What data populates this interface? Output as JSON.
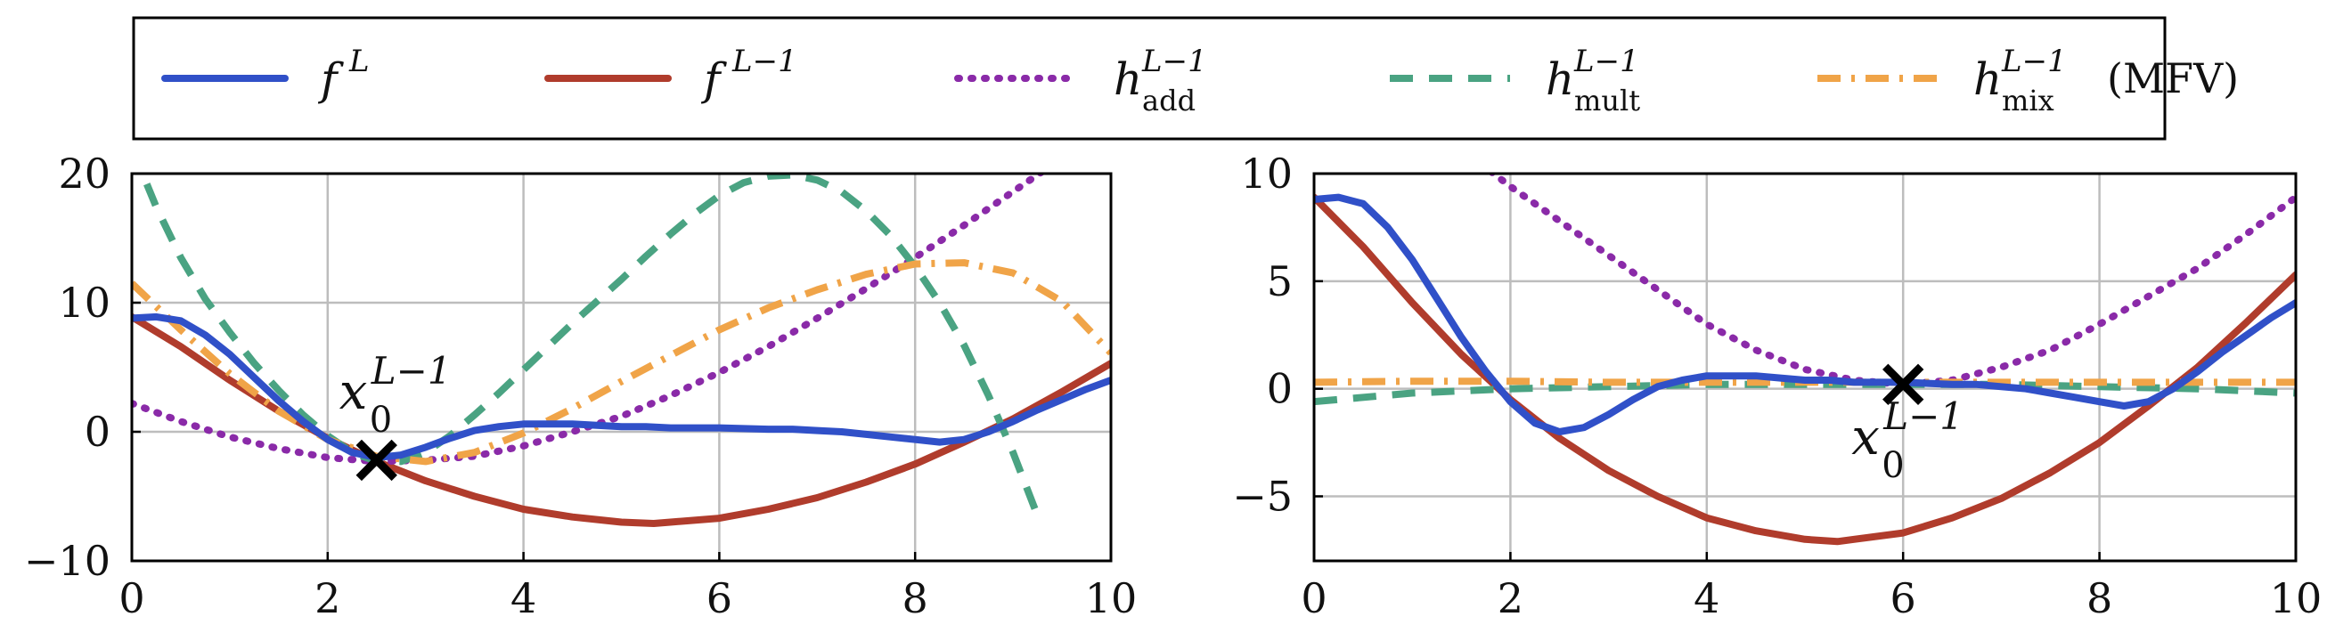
{
  "legend": {
    "placement": "top",
    "entries": [
      {
        "key": "fL",
        "symbol": "f",
        "sup": "L",
        "sub": "",
        "suffix": ""
      },
      {
        "key": "fL1",
        "symbol": "f",
        "sup": "L−1",
        "sub": "",
        "suffix": ""
      },
      {
        "key": "hadd",
        "symbol": "h",
        "sup": "L−1",
        "sub": "add",
        "suffix": ""
      },
      {
        "key": "hmult",
        "symbol": "h",
        "sup": "L−1",
        "sub": "mult",
        "suffix": ""
      },
      {
        "key": "hmix",
        "symbol": "h",
        "sup": "L−1",
        "sub": "mix",
        "suffix": "(MFV)"
      }
    ]
  },
  "colors": {
    "fL": "#3050c8",
    "fL1": "#b03c2c",
    "hadd": "#8a2aa8",
    "hmult": "#4aa382",
    "hmix": "#f0a448",
    "grid": "#bdbdbd",
    "marker": "#000000"
  },
  "chart_data": [
    {
      "type": "line",
      "grid": true,
      "xlim": [
        0,
        10
      ],
      "ylim": [
        -10,
        20
      ],
      "xticks": [
        0,
        2,
        4,
        6,
        8,
        10
      ],
      "xtick_labels": [
        "0",
        "2",
        "4",
        "6",
        "8",
        "10"
      ],
      "yticks": [
        -10,
        0,
        10,
        20
      ],
      "ytick_labels": [
        "−10",
        "0",
        "10",
        "20"
      ],
      "annotation": {
        "symbol": "x",
        "sup": "L−1",
        "sub": "0",
        "marker_x": 2.5,
        "marker_y": -2.2,
        "position": "above-left"
      },
      "series": [
        {
          "key": "fL",
          "style": "solid",
          "x": [
            0,
            0.25,
            0.5,
            0.75,
            1,
            1.25,
            1.5,
            1.75,
            2,
            2.25,
            2.5,
            2.75,
            3,
            3.25,
            3.5,
            3.75,
            4,
            4.25,
            4.5,
            4.75,
            5,
            5.25,
            5.5,
            5.75,
            6,
            6.25,
            6.5,
            6.75,
            7,
            7.25,
            7.5,
            7.75,
            8,
            8.25,
            8.5,
            8.75,
            9,
            9.25,
            9.5,
            9.75,
            10
          ],
          "y": [
            8.8,
            8.9,
            8.6,
            7.5,
            6,
            4.2,
            2.4,
            0.8,
            -0.6,
            -1.6,
            -2.0,
            -1.8,
            -1.2,
            -0.5,
            0.1,
            0.4,
            0.6,
            0.6,
            0.6,
            0.5,
            0.4,
            0.4,
            0.3,
            0.3,
            0.3,
            0.25,
            0.2,
            0.2,
            0.1,
            0,
            -0.2,
            -0.4,
            -0.6,
            -0.8,
            -0.6,
            0,
            0.8,
            1.7,
            2.5,
            3.3,
            4.0
          ]
        },
        {
          "key": "fL1",
          "style": "solid",
          "x": [
            0,
            0.5,
            1,
            1.5,
            2,
            2.5,
            3,
            3.5,
            4,
            4.5,
            5,
            5.33,
            5.5,
            6,
            6.5,
            7,
            7.5,
            8,
            8.5,
            9,
            9.5,
            10
          ],
          "y": [
            8.9,
            6.6,
            4.0,
            1.6,
            -0.5,
            -2.3,
            -3.8,
            -5.0,
            -6.0,
            -6.6,
            -7.0,
            -7.1,
            -7.0,
            -6.7,
            -6.0,
            -5.1,
            -3.9,
            -2.5,
            -0.8,
            1.0,
            3.1,
            5.3
          ]
        },
        {
          "key": "hadd",
          "style": "dotted",
          "x": [
            0,
            0.5,
            1,
            1.5,
            2,
            2.5,
            3,
            3.5,
            4,
            4.5,
            5,
            5.5,
            6,
            6.5,
            7,
            7.5,
            8,
            8.5,
            9,
            9.5
          ],
          "y": [
            2.2,
            0.8,
            -0.4,
            -1.3,
            -2.0,
            -2.3,
            -2.2,
            -1.9,
            -1.1,
            0,
            1.2,
            2.8,
            4.6,
            6.6,
            8.8,
            11.1,
            13.5,
            16.0,
            18.6,
            21.2
          ]
        },
        {
          "key": "hmult",
          "style": "dashed",
          "x": [
            0,
            0.25,
            0.5,
            0.75,
            1,
            1.25,
            1.5,
            1.75,
            2,
            2.25,
            2.5,
            2.75,
            3,
            3.25,
            3.5,
            3.75,
            4,
            4.25,
            4.5,
            4.75,
            5,
            5.25,
            5.5,
            5.75,
            6,
            6.25,
            6.5,
            6.75,
            7,
            7.25,
            7.5,
            7.75,
            8,
            8.25,
            8.5,
            8.75,
            9,
            9.25
          ],
          "y": [
            22,
            17.4,
            13.5,
            10.3,
            7.7,
            5.3,
            3.2,
            1.3,
            -0.3,
            -1.6,
            -2.3,
            -2.3,
            -1.6,
            -0.3,
            1.3,
            3.0,
            4.8,
            6.6,
            8.4,
            10.1,
            11.8,
            13.6,
            15.3,
            16.9,
            18.3,
            19.3,
            19.8,
            19.9,
            19.5,
            18.6,
            17.1,
            15.2,
            12.8,
            10.0,
            6.7,
            2.8,
            -1.6,
            -6.5
          ]
        },
        {
          "key": "hmix",
          "style": "dashdot",
          "x": [
            0,
            0.5,
            1,
            1.5,
            2,
            2.5,
            3,
            3.5,
            4,
            4.5,
            5,
            5.5,
            6,
            6.5,
            7,
            7.5,
            8,
            8.5,
            9,
            9.5,
            10
          ],
          "y": [
            11.5,
            7.9,
            4.5,
            1.6,
            -0.6,
            -1.9,
            -2.3,
            -1.6,
            -0.1,
            1.8,
            3.9,
            5.9,
            7.9,
            9.6,
            11.0,
            12.2,
            13.0,
            13.1,
            12.3,
            10.1,
            6.1
          ]
        }
      ]
    },
    {
      "type": "line",
      "grid": true,
      "xlim": [
        0,
        10
      ],
      "ylim": [
        -8,
        10
      ],
      "xticks": [
        0,
        2,
        4,
        6,
        8,
        10
      ],
      "xtick_labels": [
        "0",
        "2",
        "4",
        "6",
        "8",
        "10"
      ],
      "yticks": [
        -5,
        0,
        5,
        10
      ],
      "ytick_labels": [
        "−5",
        "0",
        "5",
        "10"
      ],
      "annotation": {
        "symbol": "x",
        "sup": "L−1",
        "sub": "0",
        "marker_x": 6,
        "marker_y": 0.2,
        "position": "below-left"
      },
      "series": [
        {
          "key": "fL",
          "style": "solid",
          "x": [
            0,
            0.25,
            0.5,
            0.75,
            1,
            1.25,
            1.5,
            1.75,
            2,
            2.25,
            2.5,
            2.75,
            3,
            3.25,
            3.5,
            3.75,
            4,
            4.25,
            4.5,
            4.75,
            5,
            5.25,
            5.5,
            5.75,
            6,
            6.25,
            6.5,
            6.75,
            7,
            7.25,
            7.5,
            7.75,
            8,
            8.25,
            8.5,
            8.75,
            9,
            9.25,
            9.5,
            9.75,
            10
          ],
          "y": [
            8.8,
            8.9,
            8.6,
            7.5,
            6,
            4.2,
            2.4,
            0.8,
            -0.6,
            -1.6,
            -2.0,
            -1.8,
            -1.2,
            -0.5,
            0.1,
            0.4,
            0.6,
            0.6,
            0.6,
            0.5,
            0.4,
            0.4,
            0.3,
            0.3,
            0.3,
            0.25,
            0.2,
            0.2,
            0.1,
            0,
            -0.2,
            -0.4,
            -0.6,
            -0.8,
            -0.6,
            0,
            0.8,
            1.7,
            2.5,
            3.3,
            4.0
          ]
        },
        {
          "key": "fL1",
          "style": "solid",
          "x": [
            0,
            0.5,
            1,
            1.5,
            2,
            2.5,
            3,
            3.5,
            4,
            4.5,
            5,
            5.33,
            5.5,
            6,
            6.5,
            7,
            7.5,
            8,
            8.5,
            9,
            9.5,
            10
          ],
          "y": [
            8.9,
            6.6,
            4.0,
            1.6,
            -0.5,
            -2.3,
            -3.8,
            -5.0,
            -6.0,
            -6.6,
            -7.0,
            -7.1,
            -7.0,
            -6.7,
            -6.0,
            -5.1,
            -3.9,
            -2.5,
            -0.8,
            1.0,
            3.1,
            5.3
          ]
        },
        {
          "key": "hadd",
          "style": "dotted",
          "x": [
            1.8,
            2,
            2.5,
            3,
            3.5,
            4,
            4.5,
            5,
            5.5,
            6,
            6.5,
            7,
            7.5,
            8,
            8.5,
            9,
            9.5,
            10
          ],
          "y": [
            10.1,
            9.4,
            7.8,
            6.2,
            4.6,
            3.0,
            1.8,
            0.9,
            0.4,
            0.2,
            0.4,
            1.0,
            1.8,
            3.0,
            4.3,
            5.6,
            7.2,
            8.9
          ]
        },
        {
          "key": "hmult",
          "style": "dashed",
          "x": [
            0,
            1,
            2,
            3,
            4,
            5,
            6,
            7,
            8,
            9,
            10
          ],
          "y": [
            -0.6,
            -0.2,
            0.0,
            0.1,
            0.2,
            0.2,
            0.2,
            0.2,
            0.1,
            0,
            -0.2
          ]
        },
        {
          "key": "hmix",
          "style": "dashdot",
          "x": [
            0,
            1,
            2,
            3,
            4,
            5,
            6,
            7,
            8,
            9,
            10
          ],
          "y": [
            0.3,
            0.35,
            0.35,
            0.3,
            0.3,
            0.3,
            0.3,
            0.3,
            0.3,
            0.3,
            0.3
          ]
        }
      ]
    }
  ]
}
